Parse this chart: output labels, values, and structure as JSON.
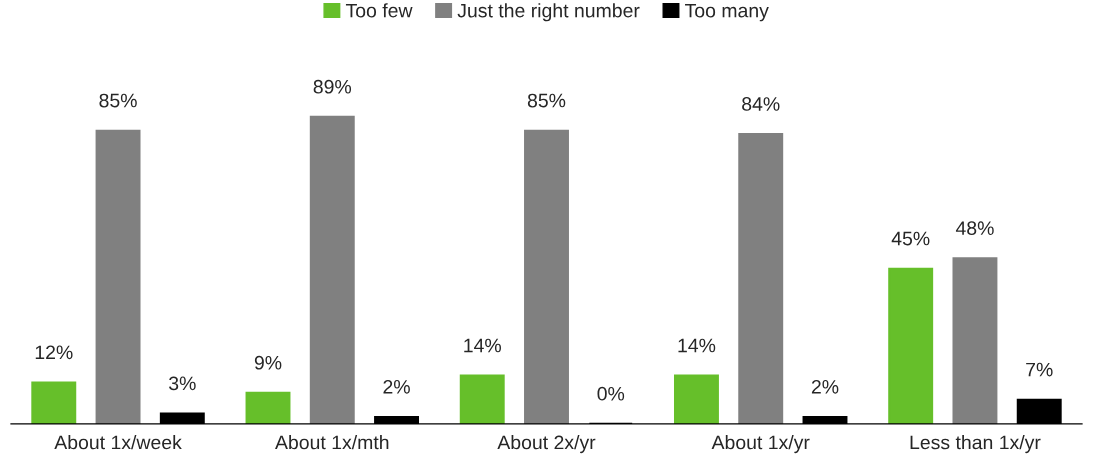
{
  "chart_data": {
    "type": "bar",
    "categories": [
      "About 1x/week",
      "About 1x/mth",
      "About 2x/yr",
      "About 1x/yr",
      "Less than 1x/yr"
    ],
    "series": [
      {
        "name": "Too few",
        "color": "#66bf2a",
        "values": [
          12,
          9,
          14,
          14,
          45
        ],
        "value_labels": [
          "12%",
          "9%",
          "14%",
          "14%",
          "45%"
        ]
      },
      {
        "name": "Just the right number",
        "color": "#808080",
        "values": [
          85,
          89,
          85,
          84,
          48
        ],
        "value_labels": [
          "85%",
          "89%",
          "85%",
          "84%",
          "48%"
        ]
      },
      {
        "name": "Too many",
        "color": "#000000",
        "values": [
          3,
          2,
          0,
          2,
          7
        ],
        "value_labels": [
          "3%",
          "2%",
          "0%",
          "2%",
          "7%"
        ]
      }
    ],
    "legend": "top",
    "grid": false
  }
}
